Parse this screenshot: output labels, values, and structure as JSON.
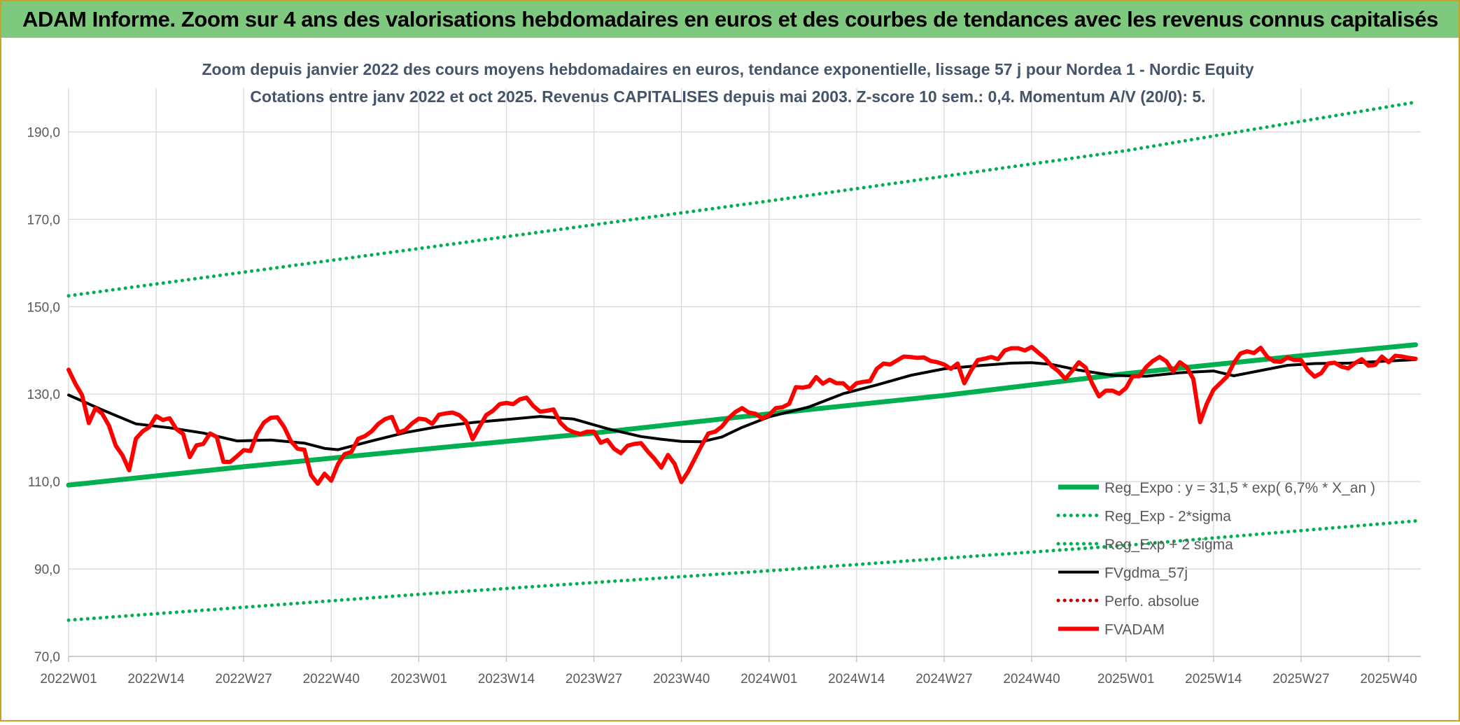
{
  "banner": {
    "title": "ADAM Informe. Zoom sur 4 ans des valorisations hebdomadaires en euros et des courbes de tendances avec les revenus connus capitalisés"
  },
  "colors": {
    "banner_bg": "#7fc97f",
    "frame": "#c9a227",
    "trend": "#00b050",
    "fvadam": "#ff0000",
    "fvgdma": "#000000",
    "perfo": "#c00000"
  },
  "chart_data": {
    "type": "line",
    "title": "Zoom depuis janvier 2022 des cours moyens hebdomadaires en euros, tendance exponentielle, lissage 57 j pour Nordea 1 - Nordic Equity",
    "subtitle": "Cotations entre janv 2022 et oct 2025. Revenus CAPITALISES depuis mai 2003. Z-score 10 sem.: 0,4. Momentum A/V (20/0): 5.",
    "xlabel": "",
    "ylabel": "",
    "ylim": [
      70,
      200
    ],
    "xlim": [
      0,
      196
    ],
    "y_ticks": [
      {
        "value": 70,
        "label": "70,0"
      },
      {
        "value": 90,
        "label": "90,0"
      },
      {
        "value": 110,
        "label": "110,0"
      },
      {
        "value": 130,
        "label": "130,0"
      },
      {
        "value": 150,
        "label": "150,0"
      },
      {
        "value": 170,
        "label": "170,0"
      },
      {
        "value": 190,
        "label": "190,0"
      }
    ],
    "x_ticks": [
      {
        "index": 0,
        "label": "2022W01"
      },
      {
        "index": 13,
        "label": "2022W14"
      },
      {
        "index": 26,
        "label": "2022W27"
      },
      {
        "index": 39,
        "label": "2022W40"
      },
      {
        "index": 52,
        "label": "2023W01"
      },
      {
        "index": 65,
        "label": "2023W14"
      },
      {
        "index": 78,
        "label": "2023W27"
      },
      {
        "index": 91,
        "label": "2023W40"
      },
      {
        "index": 104,
        "label": "2024W01"
      },
      {
        "index": 117,
        "label": "2024W14"
      },
      {
        "index": 130,
        "label": "2024W27"
      },
      {
        "index": 143,
        "label": "2024W40"
      },
      {
        "index": 157,
        "label": "2025W01"
      },
      {
        "index": 170,
        "label": "2025W14"
      },
      {
        "index": 183,
        "label": "2025W27"
      },
      {
        "index": 196,
        "label": "2025W40"
      }
    ],
    "grid": true,
    "legend_position": "bottom-right",
    "series": [
      {
        "name": "Reg_Expo : y = 31,5 * exp( 6,7% *  X_an )",
        "style": "solid-thick",
        "color": "#00b050",
        "points": [
          [
            0,
            109.2
          ],
          [
            26,
            113.4
          ],
          [
            52,
            117.3
          ],
          [
            78,
            121.1
          ],
          [
            104,
            125.5
          ],
          [
            130,
            129.7
          ],
          [
            157,
            134.7
          ],
          [
            183,
            138.8
          ],
          [
            200,
            141.3
          ]
        ]
      },
      {
        "name": "Reg_Exp - 2*sigma",
        "style": "dotted",
        "color": "#00b050",
        "points": [
          [
            0,
            78.3
          ],
          [
            52,
            84.2
          ],
          [
            104,
            89.6
          ],
          [
            157,
            95.4
          ],
          [
            200,
            101.0
          ]
        ]
      },
      {
        "name": "Reg_Exp + 2 sigma",
        "style": "dotted",
        "color": "#00b050",
        "points": [
          [
            0,
            152.5
          ],
          [
            52,
            163.3
          ],
          [
            104,
            174.2
          ],
          [
            157,
            185.7
          ],
          [
            200,
            196.8
          ]
        ]
      },
      {
        "name": "FVgdma_57j",
        "style": "solid",
        "color": "#000000",
        "points": [
          [
            0,
            129.8
          ],
          [
            5,
            126.4
          ],
          [
            10,
            123.2
          ],
          [
            15,
            122.3
          ],
          [
            20,
            121.1
          ],
          [
            25,
            119.3
          ],
          [
            30,
            119.5
          ],
          [
            35,
            118.8
          ],
          [
            38,
            117.6
          ],
          [
            40,
            117.3
          ],
          [
            45,
            119.3
          ],
          [
            50,
            121.2
          ],
          [
            55,
            122.6
          ],
          [
            60,
            123.5
          ],
          [
            65,
            124.2
          ],
          [
            70,
            124.9
          ],
          [
            75,
            124.3
          ],
          [
            80,
            122.1
          ],
          [
            85,
            120.3
          ],
          [
            88,
            119.7
          ],
          [
            91,
            119.2
          ],
          [
            94,
            119.1
          ],
          [
            97,
            120.2
          ],
          [
            100,
            122.4
          ],
          [
            104,
            124.8
          ],
          [
            110,
            127.1
          ],
          [
            115,
            130.1
          ],
          [
            120,
            132.1
          ],
          [
            125,
            134.3
          ],
          [
            130,
            135.8
          ],
          [
            135,
            136.5
          ],
          [
            140,
            137.1
          ],
          [
            143,
            137.2
          ],
          [
            146,
            136.8
          ],
          [
            150,
            135.5
          ],
          [
            155,
            134.3
          ],
          [
            160,
            134.1
          ],
          [
            165,
            134.9
          ],
          [
            170,
            135.3
          ],
          [
            173,
            134.2
          ],
          [
            177,
            135.4
          ],
          [
            181,
            136.6
          ],
          [
            185,
            137.0
          ],
          [
            190,
            137.1
          ],
          [
            195,
            137.5
          ],
          [
            200,
            137.9
          ]
        ]
      },
      {
        "name": "Perfo. absolue",
        "style": "dotted",
        "color": "#c00000",
        "points": []
      },
      {
        "name": "FVADAM",
        "style": "solid-thick",
        "color": "#ff0000",
        "points": [
          [
            0,
            135.6
          ],
          [
            1,
            132.4
          ],
          [
            2,
            129.8
          ],
          [
            3,
            123.4
          ],
          [
            4,
            126.8
          ],
          [
            5,
            125.5
          ],
          [
            6,
            122.8
          ],
          [
            7,
            118.2
          ],
          [
            8,
            116.0
          ],
          [
            9,
            112.6
          ],
          [
            10,
            119.8
          ],
          [
            11,
            121.5
          ],
          [
            12,
            122.5
          ],
          [
            13,
            125.0
          ],
          [
            14,
            124.1
          ],
          [
            15,
            124.5
          ],
          [
            16,
            122.0
          ],
          [
            17,
            120.9
          ],
          [
            18,
            115.6
          ],
          [
            19,
            118.3
          ],
          [
            20,
            118.6
          ],
          [
            21,
            121.0
          ],
          [
            22,
            120.2
          ],
          [
            23,
            114.5
          ],
          [
            24,
            114.5
          ],
          [
            25,
            115.8
          ],
          [
            26,
            117.2
          ],
          [
            27,
            117.0
          ],
          [
            28,
            121.0
          ],
          [
            29,
            123.5
          ],
          [
            30,
            124.6
          ],
          [
            31,
            124.7
          ],
          [
            32,
            122.5
          ],
          [
            33,
            119.3
          ],
          [
            34,
            117.5
          ],
          [
            35,
            117.3
          ],
          [
            36,
            111.5
          ],
          [
            37,
            109.5
          ],
          [
            38,
            111.8
          ],
          [
            39,
            110.2
          ],
          [
            40,
            114.0
          ],
          [
            41,
            116.3
          ],
          [
            42,
            116.8
          ],
          [
            43,
            119.8
          ],
          [
            44,
            120.4
          ],
          [
            45,
            121.5
          ],
          [
            46,
            123.2
          ],
          [
            47,
            124.3
          ],
          [
            48,
            124.8
          ],
          [
            49,
            121.2
          ],
          [
            50,
            121.8
          ],
          [
            51,
            123.3
          ],
          [
            52,
            124.4
          ],
          [
            53,
            124.2
          ],
          [
            54,
            123.2
          ],
          [
            55,
            125.3
          ],
          [
            56,
            125.6
          ],
          [
            57,
            125.8
          ],
          [
            58,
            125.2
          ],
          [
            59,
            123.8
          ],
          [
            60,
            119.7
          ],
          [
            61,
            122.5
          ],
          [
            62,
            125.2
          ],
          [
            63,
            126.2
          ],
          [
            64,
            127.7
          ],
          [
            65,
            128.0
          ],
          [
            66,
            127.7
          ],
          [
            67,
            128.8
          ],
          [
            68,
            129.2
          ],
          [
            69,
            127.3
          ],
          [
            70,
            126.0
          ],
          [
            71,
            126.2
          ],
          [
            72,
            126.5
          ],
          [
            73,
            123.5
          ],
          [
            74,
            122.0
          ],
          [
            75,
            121.3
          ],
          [
            76,
            120.9
          ],
          [
            77,
            121.4
          ],
          [
            78,
            121.4
          ],
          [
            79,
            118.9
          ],
          [
            80,
            119.5
          ],
          [
            81,
            117.5
          ],
          [
            82,
            116.5
          ],
          [
            83,
            118.2
          ],
          [
            84,
            118.6
          ],
          [
            85,
            118.8
          ],
          [
            86,
            116.9
          ],
          [
            87,
            115.2
          ],
          [
            88,
            113.2
          ],
          [
            89,
            116.1
          ],
          [
            90,
            114.0
          ],
          [
            91,
            109.9
          ],
          [
            92,
            112.3
          ],
          [
            93,
            115.3
          ],
          [
            94,
            118.3
          ],
          [
            95,
            121.0
          ],
          [
            96,
            121.4
          ],
          [
            97,
            122.6
          ],
          [
            98,
            124.5
          ],
          [
            99,
            125.9
          ],
          [
            100,
            126.8
          ],
          [
            101,
            125.8
          ],
          [
            102,
            125.5
          ],
          [
            103,
            124.4
          ],
          [
            104,
            125.2
          ],
          [
            105,
            126.8
          ],
          [
            106,
            127.0
          ],
          [
            107,
            127.8
          ],
          [
            108,
            131.6
          ],
          [
            109,
            131.5
          ],
          [
            110,
            131.8
          ],
          [
            111,
            133.9
          ],
          [
            112,
            132.4
          ],
          [
            113,
            133.3
          ],
          [
            114,
            132.5
          ],
          [
            115,
            132.5
          ],
          [
            116,
            131.1
          ],
          [
            117,
            132.5
          ],
          [
            118,
            132.8
          ],
          [
            119,
            133.0
          ],
          [
            120,
            135.8
          ],
          [
            121,
            137.0
          ],
          [
            122,
            136.8
          ],
          [
            123,
            137.7
          ],
          [
            124,
            138.6
          ],
          [
            125,
            138.5
          ],
          [
            126,
            138.3
          ],
          [
            127,
            138.4
          ],
          [
            128,
            137.6
          ],
          [
            129,
            137.3
          ],
          [
            130,
            136.8
          ],
          [
            131,
            135.8
          ],
          [
            132,
            137.0
          ],
          [
            133,
            132.5
          ],
          [
            134,
            135.4
          ],
          [
            135,
            137.8
          ],
          [
            136,
            138.1
          ],
          [
            137,
            138.5
          ],
          [
            138,
            138.0
          ],
          [
            139,
            140.0
          ],
          [
            140,
            140.5
          ],
          [
            141,
            140.5
          ],
          [
            142,
            140.0
          ],
          [
            143,
            140.8
          ],
          [
            144,
            139.5
          ],
          [
            145,
            138.2
          ],
          [
            146,
            136.4
          ],
          [
            147,
            135.2
          ],
          [
            148,
            133.5
          ],
          [
            149,
            135.3
          ],
          [
            150,
            137.3
          ],
          [
            151,
            136.1
          ],
          [
            152,
            132.4
          ],
          [
            153,
            129.5
          ],
          [
            154,
            130.8
          ],
          [
            155,
            130.8
          ],
          [
            156,
            130.1
          ],
          [
            157,
            131.4
          ],
          [
            158,
            134.1
          ],
          [
            159,
            134.1
          ],
          [
            160,
            136.2
          ],
          [
            161,
            137.6
          ],
          [
            162,
            138.5
          ],
          [
            163,
            137.5
          ],
          [
            164,
            135.2
          ],
          [
            165,
            137.3
          ],
          [
            166,
            136.2
          ],
          [
            167,
            133.5
          ],
          [
            168,
            123.6
          ],
          [
            169,
            127.8
          ],
          [
            170,
            131.0
          ],
          [
            171,
            132.5
          ],
          [
            172,
            134.0
          ],
          [
            173,
            137.1
          ],
          [
            174,
            139.3
          ],
          [
            175,
            139.8
          ],
          [
            176,
            139.4
          ],
          [
            177,
            140.6
          ],
          [
            178,
            138.5
          ],
          [
            179,
            137.5
          ],
          [
            180,
            137.4
          ],
          [
            181,
            138.4
          ],
          [
            182,
            137.8
          ],
          [
            183,
            137.8
          ],
          [
            184,
            135.5
          ],
          [
            185,
            134.0
          ],
          [
            186,
            134.8
          ],
          [
            187,
            137.0
          ],
          [
            188,
            137.2
          ],
          [
            189,
            136.3
          ],
          [
            190,
            135.9
          ],
          [
            191,
            137.1
          ],
          [
            192,
            138.0
          ],
          [
            193,
            136.5
          ],
          [
            194,
            136.7
          ],
          [
            195,
            138.6
          ],
          [
            196,
            137.3
          ],
          [
            197,
            138.8
          ],
          [
            198,
            138.6
          ],
          [
            199,
            138.3
          ],
          [
            200,
            138.1
          ]
        ]
      }
    ]
  }
}
